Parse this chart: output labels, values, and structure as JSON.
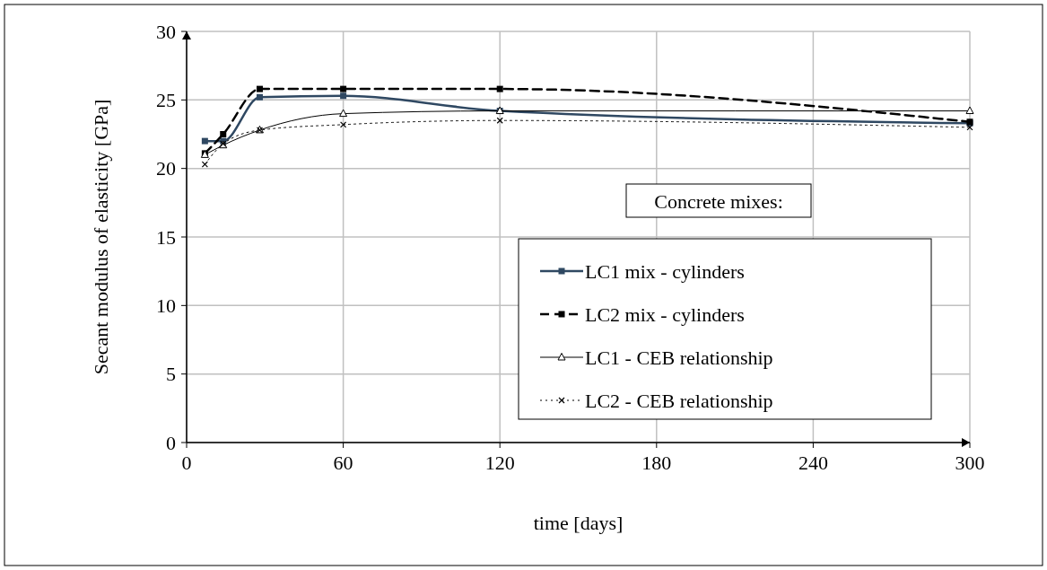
{
  "chart_data": {
    "type": "line",
    "xlabel": "time [days]",
    "ylabel": "Secant modulus of elasticity [GPa]",
    "legend_title": "Concrete mixes:",
    "xlim": [
      0,
      300
    ],
    "xticks": [
      0,
      60,
      120,
      180,
      240,
      300
    ],
    "ylim": [
      0,
      30
    ],
    "yticks": [
      0,
      5,
      10,
      15,
      20,
      25,
      30
    ],
    "grid": true,
    "legend": "right",
    "x": [
      7,
      14,
      28,
      60,
      120,
      300
    ],
    "series": [
      {
        "name": "LC1 mix - cylinders",
        "color": "#2f4862",
        "marker": "square",
        "line_style": "solid",
        "values": [
          22.0,
          22.0,
          25.2,
          25.3,
          24.2,
          23.3
        ]
      },
      {
        "name": "LC2 mix - cylinders",
        "color": "#000000",
        "marker": "square",
        "line_style": "dashed",
        "values": [
          21.1,
          22.5,
          25.8,
          25.8,
          25.8,
          23.4
        ]
      },
      {
        "name": "LC1 - CEB relationship",
        "color": "#000000",
        "marker": "triangle",
        "line_style": "solid",
        "values": [
          21.0,
          21.7,
          22.8,
          24.0,
          24.2,
          24.2
        ]
      },
      {
        "name": "LC2 - CEB relationship",
        "color": "#000000",
        "marker": "cross",
        "line_style": "dotted",
        "values": [
          20.3,
          21.8,
          22.8,
          23.2,
          23.5,
          23.0
        ]
      }
    ]
  }
}
